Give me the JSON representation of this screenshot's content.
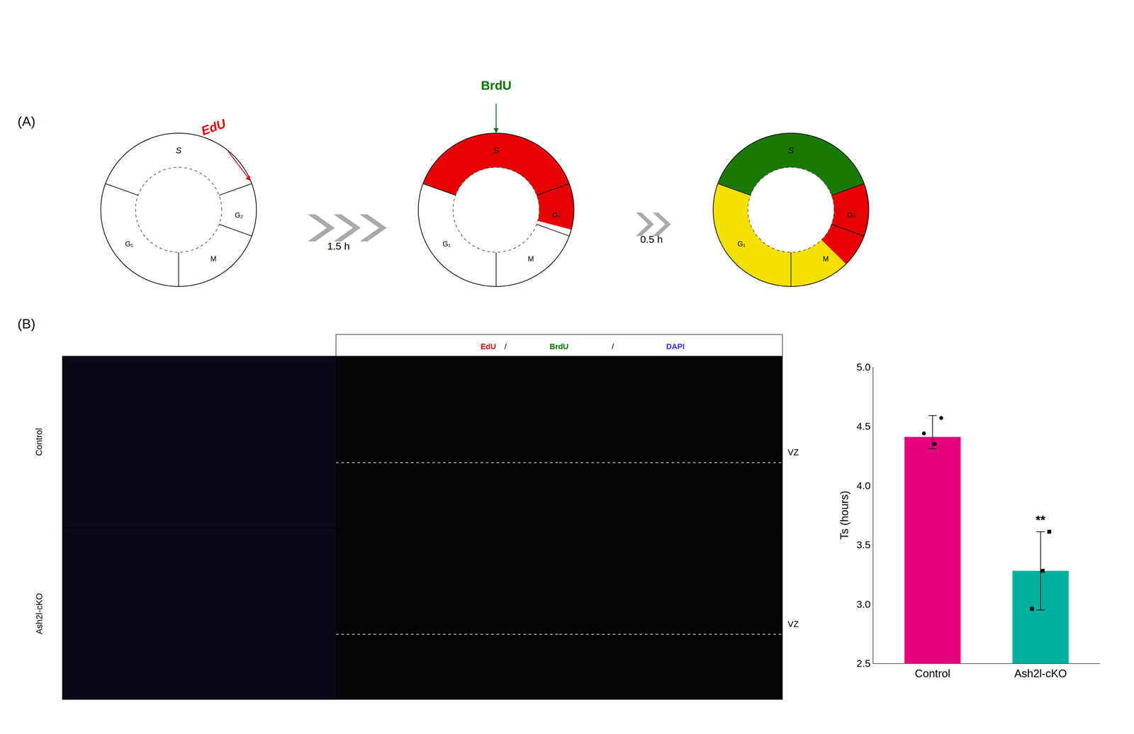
{
  "chart_data": {
    "type": "bar",
    "categories": [
      "Control",
      "Ash2l-cKO"
    ],
    "values": [
      4.41,
      3.28
    ],
    "colors": [
      "#e6007e",
      "#00b09e"
    ],
    "error_up": [
      0.18,
      0.33
    ],
    "error_down": [
      0.1,
      0.33
    ],
    "dots": [
      [
        4.44,
        4.35,
        4.57
      ],
      [
        3.28,
        2.96,
        3.61
      ]
    ],
    "dot_markers": [
      "circle",
      "square"
    ],
    "ylabel": "Ts (hours)",
    "ylim": [
      2.5,
      5.0
    ],
    "yticks": [
      2.5,
      {
        "value": 3.0,
        "label": "3.0"
      },
      3.5,
      {
        "value": 4.0,
        "label": "4.0"
      },
      4.5,
      {
        "value": 5.0,
        "label": "5.0"
      }
    ],
    "grid": false,
    "annotations": [
      {
        "text": "(A)"
      },
      {
        "text": "(B)"
      },
      {
        "text": "EdU",
        "color": "#dd0000"
      },
      {
        "text": "BrdU",
        "color": "#007700"
      },
      {
        "text": "1.5 h"
      },
      {
        "text": "0.5 h"
      },
      {
        "text": "EdU",
        "color": "#dd0000"
      },
      {
        "text": "/"
      },
      {
        "text": "BrdU",
        "color": "#007700"
      },
      {
        "text": "/"
      },
      {
        "text": "DAPI",
        "color": "#3333ff"
      },
      {
        "text": "Control"
      },
      {
        "text": "Ash2l-cKO"
      },
      {
        "text": "VZ"
      },
      {
        "text": "VZ"
      },
      {
        "text": "**",
        "category": "Ash2l-cKO"
      }
    ],
    "ring_labels": [
      "S",
      "G₂",
      "M",
      "G₁"
    ],
    "rings": [
      [],
      [
        {
          "start": 345,
          "end": 520,
          "color": "#e60000"
        }
      ],
      [
        {
          "start": 20,
          "end": 160,
          "color": "#1a7a00"
        },
        {
          "start": 160,
          "end": 315,
          "color": "#f5e000"
        },
        {
          "start": 315,
          "end": 380,
          "color": "#e60000"
        }
      ]
    ],
    "phase_boundaries": [
      20,
      160,
      270,
      340
    ]
  }
}
